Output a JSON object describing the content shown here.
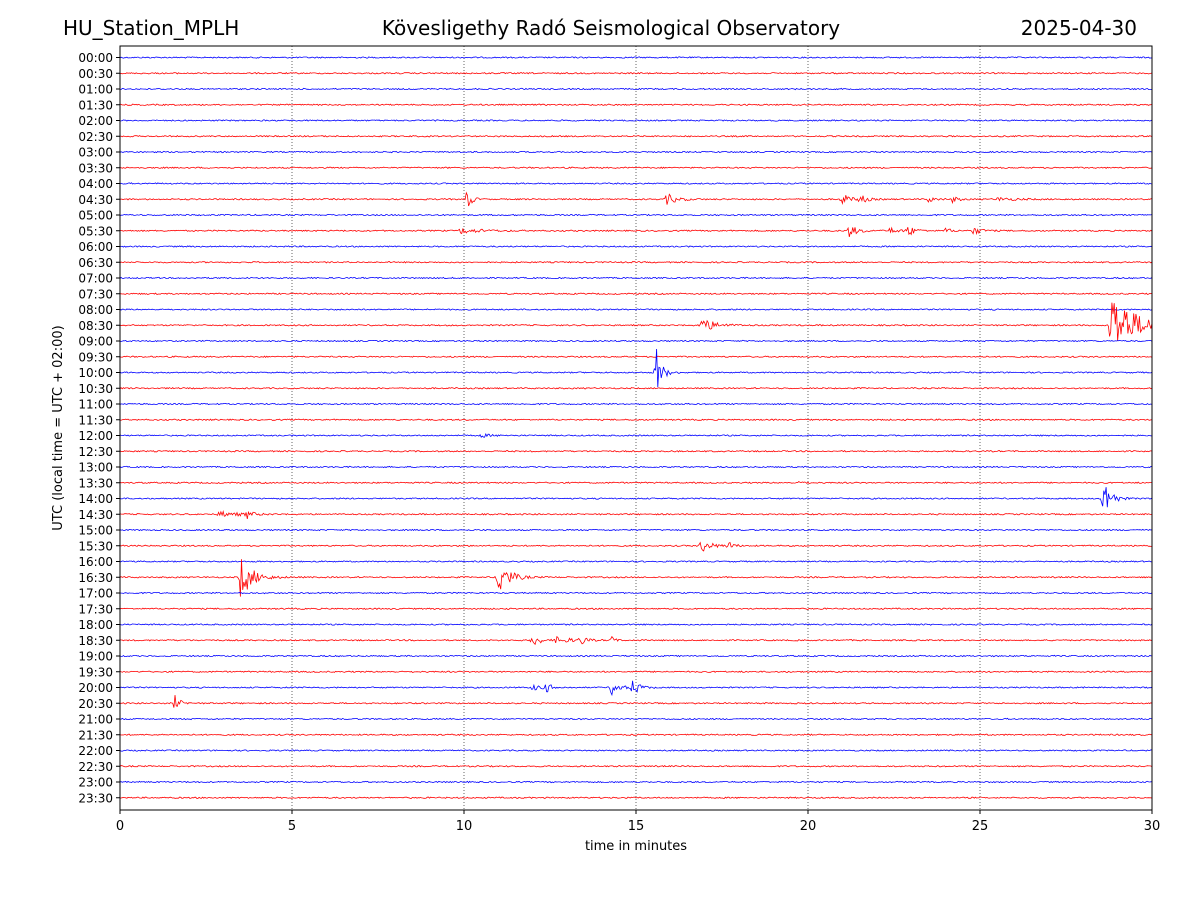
{
  "header": {
    "station": "HU_Station_MPLH",
    "observatory": "Kövesligethy Radó Seismological Observatory",
    "date": "2025-04-30"
  },
  "chart_data": {
    "type": "line",
    "title": "Kövesligethy Radó Seismological Observatory",
    "xlabel": "time in minutes",
    "ylabel": "UTC (local time = UTC + 02:00)",
    "xlim": [
      0,
      30
    ],
    "x_ticks": [
      0,
      5,
      10,
      15,
      20,
      25,
      30
    ],
    "grid": "vertical dotted lines at 5-minute ticks",
    "row_labels": [
      "00:00",
      "00:30",
      "01:00",
      "01:30",
      "02:00",
      "02:30",
      "03:00",
      "03:30",
      "04:00",
      "04:30",
      "05:00",
      "05:30",
      "06:00",
      "06:30",
      "07:00",
      "07:30",
      "08:00",
      "08:30",
      "09:00",
      "09:30",
      "10:00",
      "10:30",
      "11:00",
      "11:30",
      "12:00",
      "12:30",
      "13:00",
      "13:30",
      "14:00",
      "14:30",
      "15:00",
      "15:30",
      "16:00",
      "16:30",
      "17:00",
      "17:30",
      "18:00",
      "18:30",
      "19:00",
      "19:30",
      "20:00",
      "20:30",
      "21:00",
      "21:30",
      "22:00",
      "22:30",
      "23:00",
      "23:30"
    ],
    "row_colors": [
      "#0000ff",
      "#ff0000"
    ],
    "noise_amplitude": 0.06,
    "events": [
      {
        "row": "04:30",
        "minute": 10.1,
        "amplitude": 1.0,
        "duration": 0.25
      },
      {
        "row": "04:30",
        "minute": 15.9,
        "amplitude": 0.5,
        "duration": 0.6
      },
      {
        "row": "04:30",
        "minute": 21.0,
        "amplitude": 0.55,
        "duration": 0.4
      },
      {
        "row": "04:30",
        "minute": 21.5,
        "amplitude": 0.45,
        "duration": 0.4
      },
      {
        "row": "04:30",
        "minute": 23.5,
        "amplitude": 0.25,
        "duration": 0.4
      },
      {
        "row": "04:30",
        "minute": 24.2,
        "amplitude": 0.25,
        "duration": 0.4
      },
      {
        "row": "04:30",
        "minute": 25.5,
        "amplitude": 0.15,
        "duration": 1.2
      },
      {
        "row": "05:30",
        "minute": 9.9,
        "amplitude": 0.25,
        "duration": 1.2
      },
      {
        "row": "05:30",
        "minute": 21.2,
        "amplitude": 0.55,
        "duration": 0.5
      },
      {
        "row": "05:30",
        "minute": 22.4,
        "amplitude": 0.3,
        "duration": 0.4
      },
      {
        "row": "05:30",
        "minute": 22.9,
        "amplitude": 0.55,
        "duration": 0.4
      },
      {
        "row": "05:30",
        "minute": 24.0,
        "amplitude": 0.2,
        "duration": 0.4
      },
      {
        "row": "05:30",
        "minute": 24.8,
        "amplitude": 0.35,
        "duration": 0.5
      },
      {
        "row": "08:30",
        "minute": 16.9,
        "amplitude": 0.7,
        "duration": 0.8
      },
      {
        "row": "08:30",
        "minute": 28.8,
        "amplitude": 3.2,
        "duration": 1.4
      },
      {
        "row": "10:00",
        "minute": 15.6,
        "amplitude": 2.4,
        "duration": 0.3
      },
      {
        "row": "12:00",
        "minute": 10.5,
        "amplitude": 0.15,
        "duration": 0.6
      },
      {
        "row": "13:30",
        "minute": 19.8,
        "amplitude": 0.35,
        "duration": 0.2
      },
      {
        "row": "14:00",
        "minute": 28.6,
        "amplitude": 2.2,
        "duration": 0.4
      },
      {
        "row": "14:30",
        "minute": 2.9,
        "amplitude": 0.25,
        "duration": 1.2
      },
      {
        "row": "14:30",
        "minute": 3.7,
        "amplitude": 0.35,
        "duration": 0.3
      },
      {
        "row": "15:30",
        "minute": 16.9,
        "amplitude": 0.6,
        "duration": 0.6
      },
      {
        "row": "15:30",
        "minute": 17.7,
        "amplitude": 0.35,
        "duration": 0.3
      },
      {
        "row": "16:30",
        "minute": 3.5,
        "amplitude": 2.0,
        "duration": 0.7
      },
      {
        "row": "16:30",
        "minute": 11.0,
        "amplitude": 1.8,
        "duration": 0.6
      },
      {
        "row": "18:30",
        "minute": 12.0,
        "amplitude": 0.6,
        "duration": 0.4
      },
      {
        "row": "18:30",
        "minute": 12.7,
        "amplitude": 0.3,
        "duration": 0.9
      },
      {
        "row": "18:30",
        "minute": 13.4,
        "amplitude": 0.4,
        "duration": 0.3
      },
      {
        "row": "18:30",
        "minute": 14.3,
        "amplitude": 0.3,
        "duration": 0.2
      },
      {
        "row": "20:00",
        "minute": 12.0,
        "amplitude": 0.25,
        "duration": 0.6
      },
      {
        "row": "20:00",
        "minute": 12.4,
        "amplitude": 0.4,
        "duration": 0.3
      },
      {
        "row": "20:00",
        "minute": 14.3,
        "amplitude": 0.75,
        "duration": 0.4
      },
      {
        "row": "20:00",
        "minute": 14.9,
        "amplitude": 0.75,
        "duration": 0.4
      },
      {
        "row": "20:30",
        "minute": 1.6,
        "amplitude": 0.7,
        "duration": 0.3
      }
    ]
  }
}
